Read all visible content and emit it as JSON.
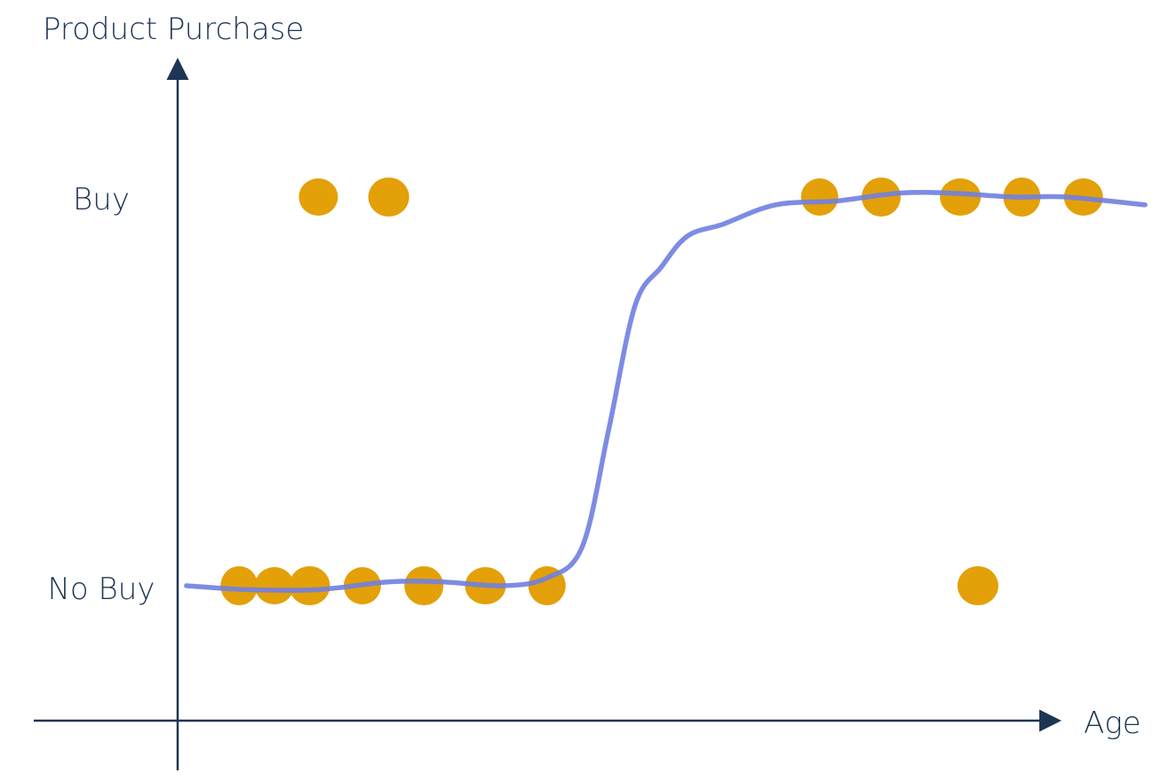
{
  "chart_data": {
    "type": "scatter",
    "title": "",
    "xlabel": "Age",
    "ylabel": "Product Purchase",
    "y_categories": [
      "No Buy",
      "Buy"
    ],
    "colors": {
      "points": "#e3a008",
      "curve": "#6f7fe0",
      "axis": "#1f3554"
    },
    "xlim": [
      0,
      100
    ],
    "ylim": [
      -0.35,
      1.35
    ],
    "grid": false,
    "legend": "none",
    "series": [
      {
        "type": "scatter",
        "points": [
          {
            "x": 7,
            "y": 0
          },
          {
            "x": 11,
            "y": 0
          },
          {
            "x": 15,
            "y": 0
          },
          {
            "x": 21,
            "y": 0
          },
          {
            "x": 28,
            "y": 0
          },
          {
            "x": 35,
            "y": 0
          },
          {
            "x": 42,
            "y": 0
          },
          {
            "x": 16,
            "y": 1
          },
          {
            "x": 24,
            "y": 1
          },
          {
            "x": 73,
            "y": 1
          },
          {
            "x": 80,
            "y": 1
          },
          {
            "x": 89,
            "y": 1
          },
          {
            "x": 96,
            "y": 1
          },
          {
            "x": 103,
            "y": 1
          },
          {
            "x": 91,
            "y": 0
          }
        ]
      },
      {
        "type": "line",
        "points": [
          {
            "x": 1,
            "y": 0.0
          },
          {
            "x": 8,
            "y": -0.01
          },
          {
            "x": 16,
            "y": -0.01
          },
          {
            "x": 24,
            "y": 0.01
          },
          {
            "x": 30,
            "y": 0.01
          },
          {
            "x": 37,
            "y": 0.0
          },
          {
            "x": 42,
            "y": 0.02
          },
          {
            "x": 46,
            "y": 0.1
          },
          {
            "x": 49,
            "y": 0.4
          },
          {
            "x": 52,
            "y": 0.72
          },
          {
            "x": 55,
            "y": 0.82
          },
          {
            "x": 58,
            "y": 0.9
          },
          {
            "x": 62,
            "y": 0.93
          },
          {
            "x": 68,
            "y": 0.98
          },
          {
            "x": 75,
            "y": 0.99
          },
          {
            "x": 82,
            "y": 1.01
          },
          {
            "x": 88,
            "y": 1.01
          },
          {
            "x": 95,
            "y": 1.0
          },
          {
            "x": 101,
            "y": 1.0
          },
          {
            "x": 110,
            "y": 0.98
          }
        ]
      }
    ]
  }
}
